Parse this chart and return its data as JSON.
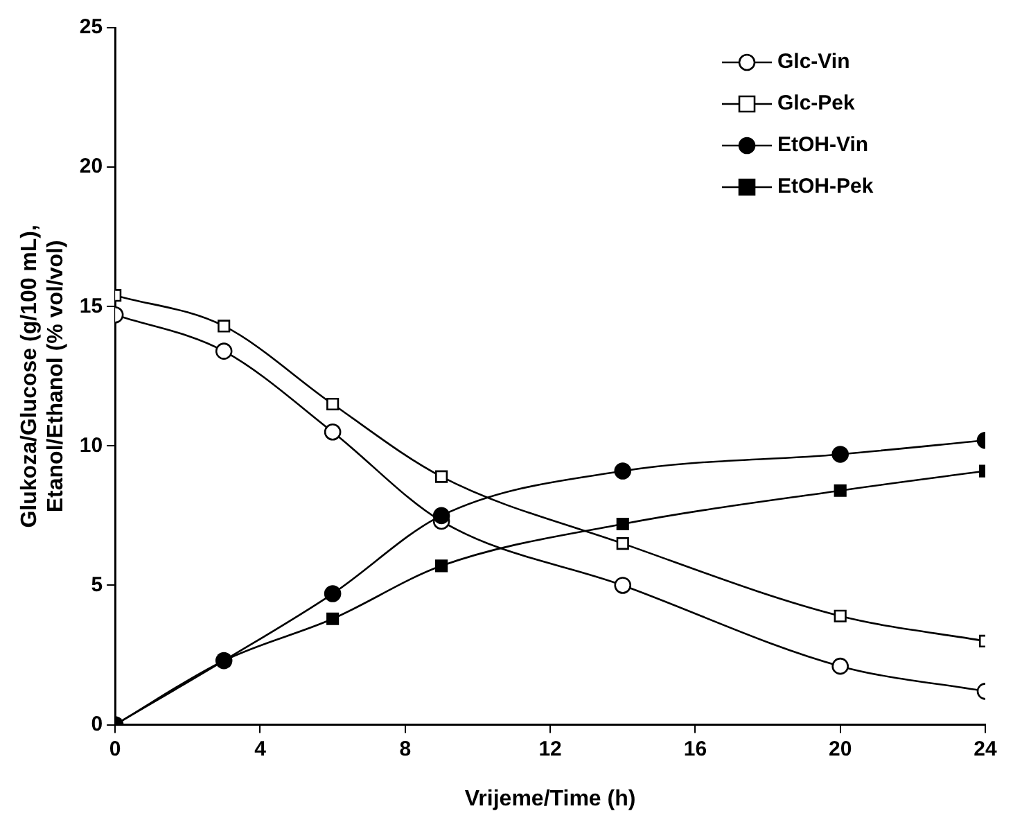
{
  "chart_data": {
    "type": "line",
    "xlabel": "Vrijeme/Time (h)",
    "ylabel": [
      "Glukoza/Glucose (g/100 mL),",
      "Etanol/Ethanol (% vol/vol)"
    ],
    "xlim": [
      0,
      24
    ],
    "xticks": [
      0,
      4,
      8,
      12,
      16,
      20,
      24
    ],
    "ylim": [
      0,
      25
    ],
    "yticks": [
      0,
      5,
      10,
      15,
      20,
      25
    ],
    "grid": false,
    "legend": "top right",
    "series": [
      {
        "name": "Glc-Vin",
        "color": "#000000",
        "marker": "circle",
        "colors": [
          "#ffffff",
          "#ffffff",
          "#ffffff",
          "#ffffff",
          "#ffffff",
          "#ffffff",
          "#ffffff"
        ],
        "x": [
          0,
          3,
          6,
          9,
          14,
          20,
          24
        ],
        "values": [
          14.7,
          13.4,
          10.5,
          7.3,
          5.0,
          2.1,
          1.2
        ]
      },
      {
        "name": "Glc-Pek",
        "color": "#000000",
        "marker": "square",
        "colors": [
          "#ffffff",
          "#ffffff",
          "#ffffff",
          "#ffffff",
          "#ffffff",
          "#ffffff",
          "#ffffff"
        ],
        "x": [
          0,
          3,
          6,
          9,
          14,
          20,
          24
        ],
        "values": [
          15.4,
          14.3,
          11.5,
          8.9,
          6.5,
          3.9,
          3.0
        ]
      },
      {
        "name": "EtOH-Vin",
        "color": "#000000",
        "marker": "circle",
        "x": [
          0,
          3,
          6,
          9,
          14,
          20,
          24
        ],
        "values": [
          0,
          2.3,
          4.7,
          7.5,
          9.1,
          9.7,
          10.2
        ]
      },
      {
        "name": "EtOH-Pek",
        "color": "#000000",
        "marker": "square",
        "x": [
          0,
          3,
          6,
          9,
          14,
          20,
          24
        ],
        "values": [
          0,
          2.3,
          3.8,
          5.7,
          7.2,
          8.4,
          9.1
        ]
      }
    ]
  }
}
